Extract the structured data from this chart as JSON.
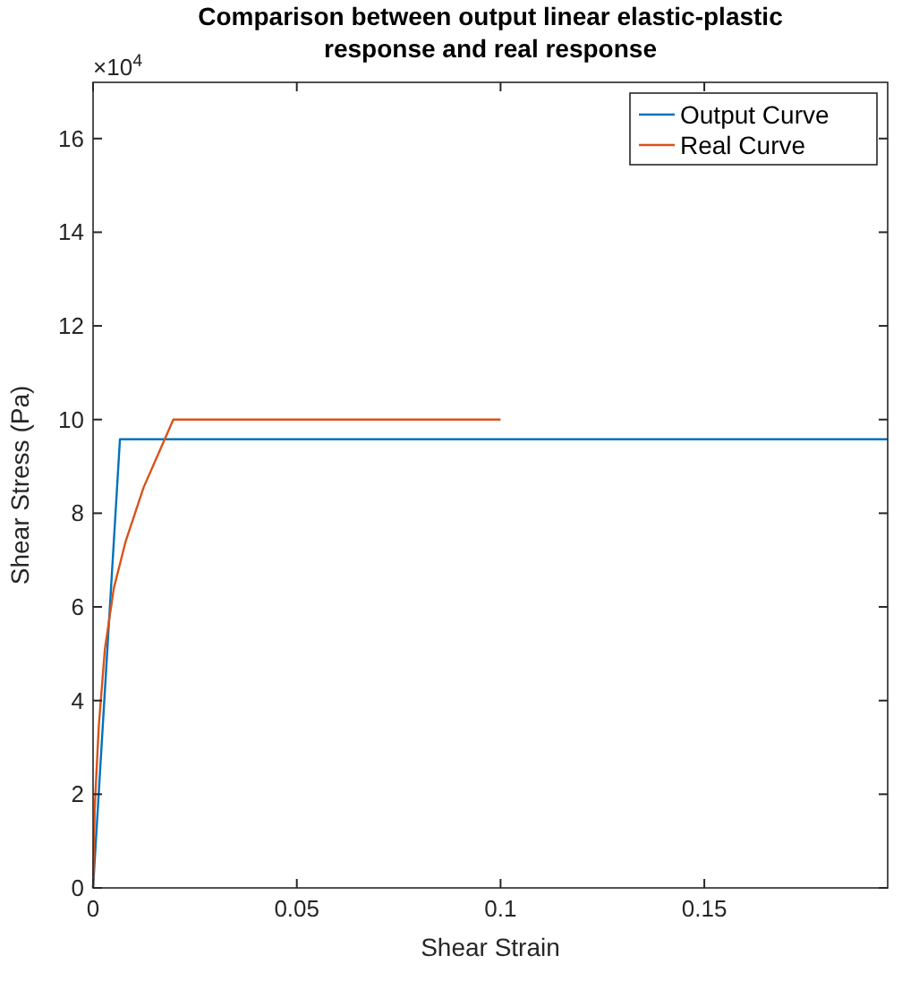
{
  "chart_data": {
    "type": "line",
    "title": "Comparison between output linear elastic-plastic response and real response",
    "xlabel": "Shear Strain",
    "ylabel": "Shear Stress (Pa)",
    "annotations": [
      "×10$^{4}$"
    ],
    "xlim": [
      0,
      0.195
    ],
    "xticks": [
      0,
      0.05,
      0.1,
      0.15
    ],
    "ylim": [
      0,
      17.2
    ],
    "yticks": [
      0,
      2,
      4,
      6,
      8,
      10,
      12,
      14,
      16
    ],
    "grid": false,
    "legend": "top right",
    "marker": "none",
    "line_style": "solid",
    "series": [
      {
        "name": "Output Curve",
        "color": "#0072bd",
        "x": [
          0,
          0.0066,
          0.195
        ],
        "values": [
          0,
          9.58,
          9.58
        ]
      },
      {
        "name": "Real Curve",
        "color": "#d95319",
        "x": [
          0,
          0.0004,
          0.0014,
          0.0029,
          0.0051,
          0.008,
          0.0124,
          0.0197,
          0.1
        ],
        "values": [
          0,
          1.7,
          3.45,
          5.1,
          6.4,
          7.4,
          8.55,
          10,
          10
        ]
      }
    ]
  }
}
